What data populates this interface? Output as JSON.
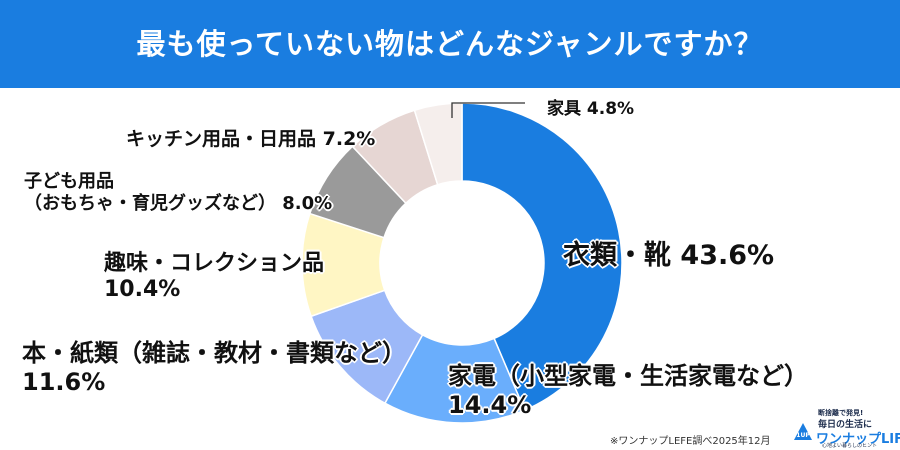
{
  "header": {
    "title": "最も使っていない物はどんなジャンルですか？"
  },
  "chart_data": {
    "type": "pie",
    "series": [
      {
        "label": "衣類・靴",
        "value": 43.6,
        "display": "43.6%",
        "color": "#1a7de0"
      },
      {
        "label": "家電（小型家電・生活家電など）",
        "value": 14.4,
        "display": "14.4%",
        "color": "#6aaefc"
      },
      {
        "label": "本・紙類（雑誌・教材・書類など）",
        "value": 11.6,
        "display": "11.6%",
        "color": "#9cb8f8"
      },
      {
        "label": "趣味・コレクション品",
        "value": 10.4,
        "display": "10.4%",
        "color": "#fff6c4"
      },
      {
        "label": "子ども用品",
        "label2": "（おもちゃ・育児グッズなど）",
        "value": 8.0,
        "display": "8.0%",
        "color": "#9a9a9a"
      },
      {
        "label": "キッチン用品・日用品",
        "value": 7.2,
        "display": "7.2%",
        "color": "#e6d6d3"
      },
      {
        "label": "家具",
        "value": 4.8,
        "display": "4.8%",
        "color": "#f5eeec"
      }
    ]
  },
  "footer": {
    "source": "※ワンナップLEFE調べ2025年12月",
    "logo_top": "断捨離で発見!",
    "logo_mid": "毎日の生活に",
    "logo_main": "ワンナップLIFE",
    "logo_sub": "心地よい暮らしのヒント",
    "logo_badge": "1UP"
  }
}
